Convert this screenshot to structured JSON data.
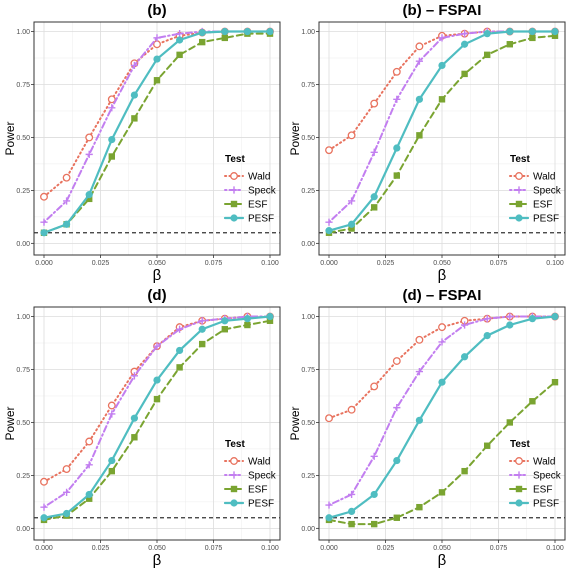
{
  "figure": {
    "hline_y": 0.05,
    "legend_title": "Test",
    "series_styles": [
      {
        "name": "Wald",
        "color": "#e8735f",
        "marker": "circle-open",
        "line": "dotted"
      },
      {
        "name": "Speck",
        "color": "#c27ef0",
        "marker": "plus",
        "line": "dotdash"
      },
      {
        "name": "ESF",
        "color": "#7aa431",
        "marker": "square",
        "line": "dashed"
      },
      {
        "name": "PESF",
        "color": "#4fbdc1",
        "marker": "circle",
        "line": "solid"
      }
    ]
  },
  "chart_data": [
    {
      "type": "line",
      "title": "(b)",
      "xlabel": "β",
      "ylabel": "Power",
      "xlim": [
        0,
        0.1
      ],
      "ylim": [
        0,
        1
      ],
      "xticks": [
        "0.000",
        "0.025",
        "0.050",
        "0.075",
        "0.100"
      ],
      "yticks": [
        "0.00",
        "0.25",
        "0.50",
        "0.75",
        "1.00"
      ],
      "grid": true,
      "legend": "right",
      "x": [
        0.0,
        0.01,
        0.02,
        0.03,
        0.04,
        0.05,
        0.06,
        0.07,
        0.08,
        0.09,
        0.1
      ],
      "series": [
        {
          "name": "Wald",
          "values": [
            0.22,
            0.31,
            0.5,
            0.68,
            0.85,
            0.94,
            0.98,
            0.995,
            1.0,
            1.0,
            1.0
          ]
        },
        {
          "name": "Speck",
          "values": [
            0.1,
            0.2,
            0.42,
            0.64,
            0.84,
            0.97,
            0.99,
            1.0,
            1.0,
            1.0,
            1.0
          ]
        },
        {
          "name": "ESF",
          "values": [
            0.05,
            0.09,
            0.21,
            0.41,
            0.59,
            0.77,
            0.89,
            0.95,
            0.97,
            0.99,
            0.99
          ]
        },
        {
          "name": "PESF",
          "values": [
            0.05,
            0.09,
            0.23,
            0.49,
            0.7,
            0.87,
            0.96,
            0.995,
            1.0,
            1.0,
            1.0
          ]
        }
      ]
    },
    {
      "type": "line",
      "title": "(b) – FSPAI",
      "xlabel": "β",
      "ylabel": "Power",
      "xlim": [
        0,
        0.1
      ],
      "ylim": [
        0,
        1
      ],
      "xticks": [
        "0.000",
        "0.025",
        "0.050",
        "0.075",
        "0.100"
      ],
      "yticks": [
        "0.00",
        "0.25",
        "0.50",
        "0.75",
        "1.00"
      ],
      "grid": true,
      "legend": "right",
      "x": [
        0.0,
        0.01,
        0.02,
        0.03,
        0.04,
        0.05,
        0.06,
        0.07,
        0.08,
        0.09,
        0.1
      ],
      "series": [
        {
          "name": "Wald",
          "values": [
            0.44,
            0.51,
            0.66,
            0.81,
            0.93,
            0.98,
            0.99,
            1.0,
            1.0,
            1.0,
            1.0
          ]
        },
        {
          "name": "Speck",
          "values": [
            0.1,
            0.2,
            0.43,
            0.68,
            0.86,
            0.97,
            0.99,
            1.0,
            1.0,
            1.0,
            1.0
          ]
        },
        {
          "name": "ESF",
          "values": [
            0.05,
            0.07,
            0.17,
            0.32,
            0.51,
            0.68,
            0.8,
            0.89,
            0.94,
            0.97,
            0.98
          ]
        },
        {
          "name": "PESF",
          "values": [
            0.06,
            0.09,
            0.22,
            0.45,
            0.68,
            0.84,
            0.94,
            0.99,
            1.0,
            1.0,
            1.0
          ]
        }
      ]
    },
    {
      "type": "line",
      "title": "(d)",
      "xlabel": "β",
      "ylabel": "Power",
      "xlim": [
        0,
        0.1
      ],
      "ylim": [
        0,
        1
      ],
      "xticks": [
        "0.000",
        "0.025",
        "0.050",
        "0.075",
        "0.100"
      ],
      "yticks": [
        "0.00",
        "0.25",
        "0.50",
        "0.75",
        "1.00"
      ],
      "grid": true,
      "legend": "bottom-right",
      "x": [
        0.0,
        0.01,
        0.02,
        0.03,
        0.04,
        0.05,
        0.06,
        0.07,
        0.08,
        0.09,
        0.1
      ],
      "series": [
        {
          "name": "Wald",
          "values": [
            0.22,
            0.28,
            0.41,
            0.58,
            0.74,
            0.86,
            0.95,
            0.98,
            0.99,
            1.0,
            1.0
          ]
        },
        {
          "name": "Speck",
          "values": [
            0.1,
            0.17,
            0.3,
            0.54,
            0.72,
            0.86,
            0.94,
            0.98,
            0.99,
            1.0,
            1.0
          ]
        },
        {
          "name": "ESF",
          "values": [
            0.04,
            0.06,
            0.14,
            0.27,
            0.43,
            0.61,
            0.76,
            0.87,
            0.94,
            0.96,
            0.98
          ]
        },
        {
          "name": "PESF",
          "values": [
            0.05,
            0.07,
            0.16,
            0.32,
            0.52,
            0.7,
            0.84,
            0.94,
            0.98,
            0.99,
            1.0
          ]
        }
      ]
    },
    {
      "type": "line",
      "title": "(d) – FSPAI",
      "xlabel": "β",
      "ylabel": "Power",
      "xlim": [
        0,
        0.1
      ],
      "ylim": [
        0,
        1
      ],
      "xticks": [
        "0.000",
        "0.025",
        "0.050",
        "0.075",
        "0.100"
      ],
      "yticks": [
        "0.00",
        "0.25",
        "0.50",
        "0.75",
        "1.00"
      ],
      "grid": true,
      "legend": "bottom-right",
      "x": [
        0.0,
        0.01,
        0.02,
        0.03,
        0.04,
        0.05,
        0.06,
        0.07,
        0.08,
        0.09,
        0.1
      ],
      "series": [
        {
          "name": "Wald",
          "values": [
            0.52,
            0.56,
            0.67,
            0.79,
            0.89,
            0.95,
            0.98,
            0.99,
            1.0,
            1.0,
            1.0
          ]
        },
        {
          "name": "Speck",
          "values": [
            0.11,
            0.16,
            0.34,
            0.57,
            0.74,
            0.88,
            0.96,
            0.99,
            1.0,
            1.0,
            1.0
          ]
        },
        {
          "name": "ESF",
          "values": [
            0.04,
            0.02,
            0.02,
            0.05,
            0.1,
            0.17,
            0.27,
            0.39,
            0.5,
            0.6,
            0.69
          ]
        },
        {
          "name": "PESF",
          "values": [
            0.05,
            0.08,
            0.16,
            0.32,
            0.51,
            0.69,
            0.81,
            0.91,
            0.96,
            0.99,
            1.0
          ]
        }
      ]
    }
  ]
}
